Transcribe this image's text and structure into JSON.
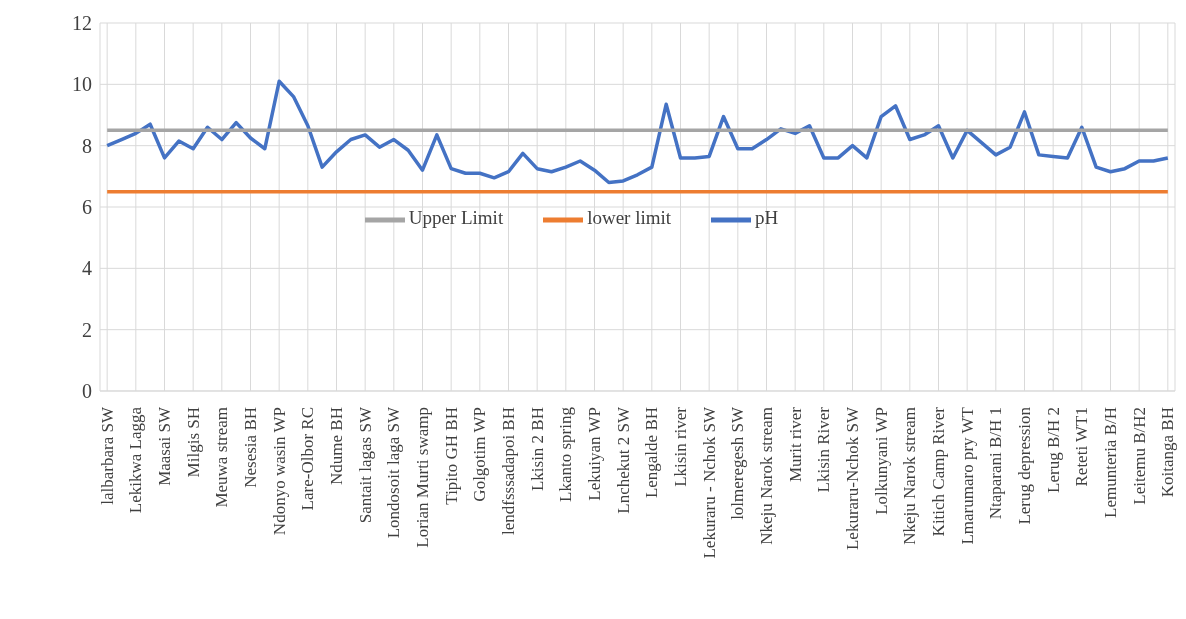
{
  "chart_data": {
    "type": "line",
    "categories": [
      "lalbarbara SW",
      null,
      "Lekikwa Lagga",
      null,
      "Maasai SW",
      null,
      "Milgis SH",
      null,
      "Meuwa stream",
      null,
      "Nesesia BH",
      null,
      "Ndonyo wasin WP",
      null,
      "Lare-Olbor RC",
      null,
      "Ndume BH",
      null,
      "Santait lagas  SW",
      null,
      "Londosoit laga SW",
      null,
      "Lorian Murti swamp",
      null,
      "Tipito GH BH",
      null,
      "Golgotim  WP",
      null,
      "lendfsssadapoi BH",
      null,
      "Lkisin 2 BH",
      null,
      "Lkanto spring",
      null,
      "Lekuiyan WP",
      null,
      "Lnchekut 2 SW",
      null,
      "Lengalde BH",
      null,
      "Lkisin river",
      null,
      "Lekuraru - Nchok SW",
      null,
      "lolmeregesh SW",
      null,
      "Nkeju Narok stream",
      null,
      "Murit river",
      null,
      "Lkisin River",
      null,
      "Lekuraru-Nchok SW",
      null,
      "Lolkunyani WP",
      null,
      "Nkeju Narok stream",
      null,
      "Kitich Camp River",
      null,
      "Lmarumaro pry WT",
      null,
      "Ntaparani B/H 1",
      null,
      "Lerug depression",
      null,
      "Lerug B/H 2",
      null,
      "Reteti WT1",
      null,
      "Lemunteria B/H",
      null,
      "Leitemu B/H2",
      null,
      "Koitanga BH"
    ],
    "series": [
      {
        "name": "pH",
        "color": "#4472c4",
        "values": [
          8.0,
          8.2,
          8.4,
          8.7,
          7.6,
          8.15,
          7.9,
          8.6,
          8.2,
          8.75,
          8.25,
          7.9,
          10.1,
          9.6,
          8.65,
          7.3,
          7.8,
          8.2,
          8.35,
          7.95,
          8.2,
          7.85,
          7.2,
          8.35,
          7.25,
          7.1,
          7.1,
          6.95,
          7.15,
          7.75,
          7.25,
          7.15,
          7.3,
          7.5,
          7.2,
          6.8,
          6.85,
          7.05,
          7.3,
          9.35,
          7.6,
          7.6,
          7.65,
          8.95,
          7.9,
          7.9,
          8.2,
          8.55,
          8.4,
          8.65,
          7.6,
          7.6,
          8.0,
          7.6,
          8.95,
          9.3,
          8.2,
          8.35,
          8.65,
          7.6,
          8.5,
          8.1,
          7.7,
          7.95,
          9.1,
          7.7,
          7.65,
          7.6,
          8.6,
          7.3,
          7.15,
          7.25,
          7.5,
          7.5,
          7.6
        ]
      },
      {
        "name": "lower limit",
        "color": "#ed7d31",
        "values": [
          6.5,
          6.5,
          6.5,
          6.5,
          6.5,
          6.5,
          6.5,
          6.5,
          6.5,
          6.5,
          6.5,
          6.5,
          6.5,
          6.5,
          6.5,
          6.5,
          6.5,
          6.5,
          6.5,
          6.5,
          6.5,
          6.5,
          6.5,
          6.5,
          6.5,
          6.5,
          6.5,
          6.5,
          6.5,
          6.5,
          6.5,
          6.5,
          6.5,
          6.5,
          6.5,
          6.5,
          6.5,
          6.5,
          6.5,
          6.5,
          6.5,
          6.5,
          6.5,
          6.5,
          6.5,
          6.5,
          6.5,
          6.5,
          6.5,
          6.5,
          6.5,
          6.5,
          6.5,
          6.5,
          6.5,
          6.5,
          6.5,
          6.5,
          6.5,
          6.5,
          6.5,
          6.5,
          6.5,
          6.5,
          6.5,
          6.5,
          6.5,
          6.5,
          6.5,
          6.5,
          6.5,
          6.5,
          6.5,
          6.5,
          6.5
        ]
      },
      {
        "name": "Upper Limit",
        "color": "#a5a5a5",
        "values": [
          8.5,
          8.5,
          8.5,
          8.5,
          8.5,
          8.5,
          8.5,
          8.5,
          8.5,
          8.5,
          8.5,
          8.5,
          8.5,
          8.5,
          8.5,
          8.5,
          8.5,
          8.5,
          8.5,
          8.5,
          8.5,
          8.5,
          8.5,
          8.5,
          8.5,
          8.5,
          8.5,
          8.5,
          8.5,
          8.5,
          8.5,
          8.5,
          8.5,
          8.5,
          8.5,
          8.5,
          8.5,
          8.5,
          8.5,
          8.5,
          8.5,
          8.5,
          8.5,
          8.5,
          8.5,
          8.5,
          8.5,
          8.5,
          8.5,
          8.5,
          8.5,
          8.5,
          8.5,
          8.5,
          8.5,
          8.5,
          8.5,
          8.5,
          8.5,
          8.5,
          8.5,
          8.5,
          8.5,
          8.5,
          8.5,
          8.5,
          8.5,
          8.5,
          8.5,
          8.5,
          8.5,
          8.5,
          8.5,
          8.5,
          8.5
        ]
      }
    ],
    "ylim": [
      0,
      12
    ],
    "yticks": [
      0,
      2,
      4,
      6,
      8,
      10,
      12
    ],
    "grid": true,
    "legend": "center",
    "marker": "none",
    "line_style": "solid"
  }
}
